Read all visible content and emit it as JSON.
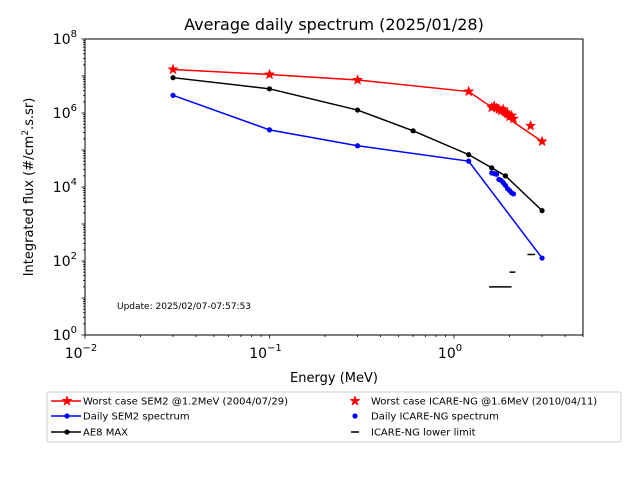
{
  "chart_data": {
    "type": "line",
    "title": "Average daily spectrum (2025/01/28)",
    "xlabel": "Energy (MeV)",
    "ylabel_prefix": "Integrated flux (#/cm",
    "ylabel_sup": "2",
    "ylabel_suffix": ".s.sr)",
    "xscale": "log",
    "yscale": "log",
    "xlim": [
      0.01,
      5
    ],
    "ylim": [
      1,
      100000000
    ],
    "grid": false,
    "legend_placement": "bottom",
    "x_ticks": [
      {
        "value": 0.01,
        "base": "10",
        "exp": "−2"
      },
      {
        "value": 0.1,
        "base": "10",
        "exp": "−1"
      },
      {
        "value": 1,
        "base": "10",
        "exp": "0"
      }
    ],
    "y_ticks": [
      {
        "value": 1,
        "base": "10",
        "exp": "0"
      },
      {
        "value": 100,
        "base": "10",
        "exp": "2"
      },
      {
        "value": 10000,
        "base": "10",
        "exp": "4"
      },
      {
        "value": 1000000,
        "base": "10",
        "exp": "6"
      },
      {
        "value": 100000000,
        "base": "10",
        "exp": "8"
      }
    ],
    "annotation": "Update: 2025/02/07-07:57:53",
    "series": [
      {
        "name": "Worst case SEM2 @1.2MeV (2004/07/29)",
        "color": "#ff0000",
        "style": "line",
        "marker": "star",
        "x": [
          0.03,
          0.1,
          0.3,
          1.2,
          3.0
        ],
        "y": [
          15000000,
          11000000,
          7800000,
          3800000,
          170000
        ]
      },
      {
        "name": "Daily SEM2 spectrum",
        "color": "#0000ff",
        "style": "line",
        "marker": "dot",
        "x": [
          0.03,
          0.1,
          0.3,
          1.2,
          3.0
        ],
        "y": [
          3000000,
          350000,
          130000,
          50000,
          120
        ]
      },
      {
        "name": "AE8 MAX",
        "color": "#000000",
        "style": "line",
        "marker": "dot",
        "x": [
          0.03,
          0.1,
          0.3,
          0.6,
          1.2,
          1.6,
          1.9,
          3.0
        ],
        "y": [
          9000000,
          4500000,
          1200000,
          330000,
          75000,
          33000,
          20000,
          2300
        ]
      },
      {
        "name": "Worst case ICARE-NG @1.6MeV (2010/04/11)",
        "color": "#ff0000",
        "style": "points",
        "marker": "star",
        "x": [
          1.6,
          1.65,
          1.7,
          1.75,
          1.8,
          1.85,
          1.9,
          1.95,
          2.0,
          2.05,
          2.1,
          2.6
        ],
        "y": [
          1400000,
          1550000,
          1350000,
          1250000,
          1150000,
          1250000,
          1050000,
          950000,
          800000,
          850000,
          700000,
          450000
        ]
      },
      {
        "name": "Daily ICARE-NG spectrum",
        "color": "#0000ff",
        "style": "points",
        "marker": "dot",
        "x": [
          1.6,
          1.65,
          1.7,
          1.75,
          1.8,
          1.85,
          1.9,
          1.95,
          2.0,
          2.05,
          2.1
        ],
        "y": [
          24000,
          23000,
          22000,
          16000,
          15000,
          13000,
          11000,
          9000,
          8000,
          7000,
          6500
        ]
      },
      {
        "name": "ICARE-NG lower limit",
        "color": "#000000",
        "style": "segments",
        "marker": "hline",
        "segments": [
          {
            "x0": 1.55,
            "x1": 2.05,
            "y": 20
          },
          {
            "x0": 2.0,
            "x1": 2.15,
            "y": 50
          },
          {
            "x0": 2.5,
            "x1": 2.75,
            "y": 150
          }
        ]
      }
    ],
    "legend_order": [
      0,
      3,
      1,
      4,
      2,
      5
    ]
  }
}
